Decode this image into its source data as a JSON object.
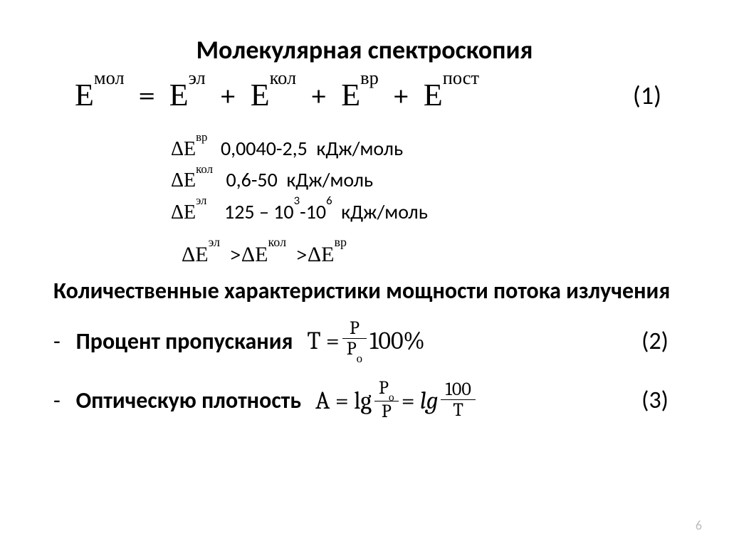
{
  "title": "Молекулярная спектроскопия",
  "equation1": {
    "label": "(1)",
    "terms": {
      "lhs_base": "Е",
      "lhs_sup": "мол",
      "t1_base": "Е",
      "t1_sup": "эл",
      "t2_base": "Е",
      "t2_sup": "кол",
      "t3_base": "Е",
      "t3_sup": "вр",
      "t4_base": "Е",
      "t4_sup": "пост"
    }
  },
  "ranges": {
    "rot": {
      "sym_pre": "Δ",
      "sym_base": "Е",
      "sym_sup": "вр",
      "value": "0,0040-2,5",
      "unit": "кДж/моль"
    },
    "vib": {
      "sym_pre": "Δ",
      "sym_base": "Е",
      "sym_sup": "кол",
      "value": "0,6-50",
      "unit": "кДж/моль"
    },
    "elec": {
      "sym_pre": "Δ",
      "sym_base": "Е",
      "sym_sup": "эл",
      "value_pre": "125 – 10",
      "value_sup1": "3",
      "value_mid": "-10",
      "value_sup2": "6",
      "unit": "кДж/моль"
    }
  },
  "inequality": {
    "a_pre": "Δ",
    "a_base": "Е",
    "a_sup": "эл",
    "b_pre": "Δ",
    "b_base": "Е",
    "b_sup": "кол",
    "c_pre": "Δ",
    "c_base": "Е",
    "c_sup": "вр"
  },
  "subtitle": "Количественные характеристики мощности потока излучения",
  "item_transmittance": {
    "label": "Процент пропускания",
    "T": "T",
    "eq": "=",
    "frac_num": "P",
    "frac_den_base": "P",
    "frac_den_sub": "о",
    "tail": "100%",
    "num": "(2)"
  },
  "item_absorbance": {
    "label": "Оптическую плотность",
    "A": "A",
    "eq": "=",
    "lg1": "lg",
    "frac1_num_base": "P",
    "frac1_num_sub": "о",
    "frac1_den": "P",
    "lg2": "lg",
    "frac2_num": "100",
    "frac2_den": "T",
    "num": "(3)"
  },
  "page_number": "6",
  "colors": {
    "text": "#000000",
    "background": "#ffffff",
    "pagenum": "#bdbdbd"
  },
  "typography": {
    "title_fontsize_pt": 27,
    "body_fontsize_pt": 24,
    "formula_fontsize_pt": 26
  }
}
